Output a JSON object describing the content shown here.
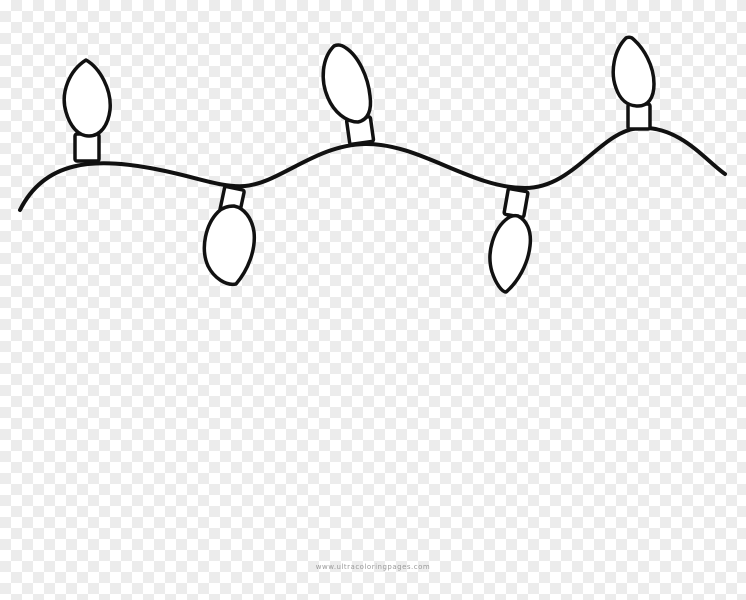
{
  "watermark": {
    "text": "www.ultracoloringpages.com"
  },
  "image": {
    "subject": "string of christmas lights line art",
    "bulb_count": 5,
    "stroke_color": "#111111",
    "fill_color": "#ffffff",
    "background": "transparent-checkerboard"
  }
}
